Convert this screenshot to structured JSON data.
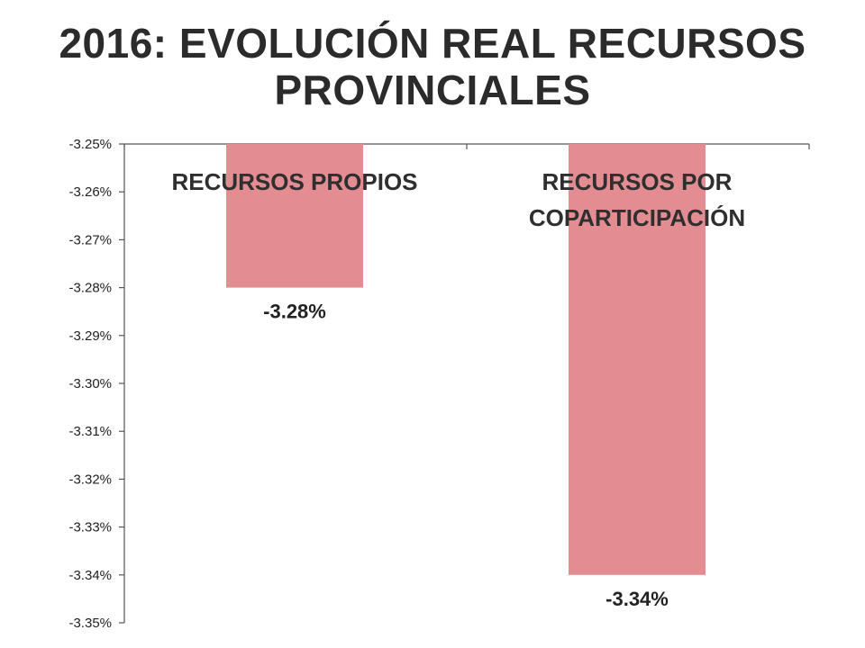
{
  "chart_data": {
    "type": "bar",
    "title_lines": [
      "2016: EVOLUCIÓN REAL RECURSOS",
      "PROVINCIALES"
    ],
    "categories": [
      [
        "RECURSOS PROPIOS"
      ],
      [
        "RECURSOS POR",
        "COPARTICIPACIÓN"
      ]
    ],
    "values": [
      -3.28,
      -3.34
    ],
    "data_labels": [
      "-3.28%",
      "-3.34%"
    ],
    "ylim": [
      -3.35,
      -3.25
    ],
    "y_ticks": [
      -3.25,
      -3.26,
      -3.27,
      -3.28,
      -3.29,
      -3.3,
      -3.31,
      -3.32,
      -3.33,
      -3.34,
      -3.35
    ],
    "y_tick_labels": [
      "-3.25%",
      "-3.26%",
      "-3.27%",
      "-3.28%",
      "-3.29%",
      "-3.30%",
      "-3.31%",
      "-3.32%",
      "-3.33%",
      "-3.34%",
      "-3.35%"
    ],
    "bar_color": "#e38d93",
    "axis_color": "#555555",
    "grid": false,
    "legend": "none"
  }
}
